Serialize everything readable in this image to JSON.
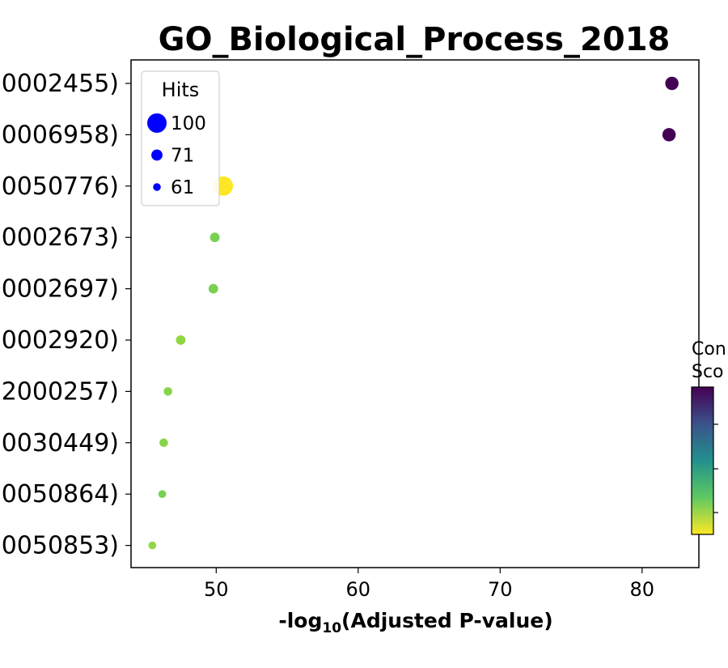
{
  "chart_data": {
    "type": "scatter",
    "title": "GO_Biological_Process_2018",
    "xlabel_prefix": "-log",
    "xlabel_sub": "10",
    "xlabel_suffix": "(Adjusted P-value)",
    "xlim": [
      44,
      84
    ],
    "xticks": [
      50,
      60,
      70,
      80
    ],
    "categories": [
      "0002455)",
      "0006958)",
      "0050776)",
      "0002673)",
      "0002697)",
      "0002920)",
      "2000257)",
      "0030449)",
      "0050864)",
      "0050853)"
    ],
    "x": [
      82.1,
      81.9,
      50.5,
      49.9,
      49.8,
      47.5,
      46.6,
      46.3,
      46.2,
      45.5
    ],
    "hits": [
      78,
      78,
      100,
      66,
      66,
      66,
      63,
      63,
      61,
      61
    ],
    "colors": [
      "#440154",
      "#440154",
      "#fde725",
      "#7ad151",
      "#7ad151",
      "#8fd744",
      "#86d549",
      "#86d549",
      "#75d054",
      "#8fd744"
    ],
    "legend": {
      "title": "Hits",
      "entries": [
        {
          "label": "100",
          "hits": 100
        },
        {
          "label": "71",
          "hits": 71
        },
        {
          "label": "61",
          "hits": 61
        }
      ],
      "color": "#0000ff",
      "placement": "top-left"
    },
    "colorbar": {
      "label_line1": "Con",
      "label_line2": "Sco",
      "colormap": "viridis",
      "ticks": [
        "",
        "",
        ""
      ]
    }
  }
}
